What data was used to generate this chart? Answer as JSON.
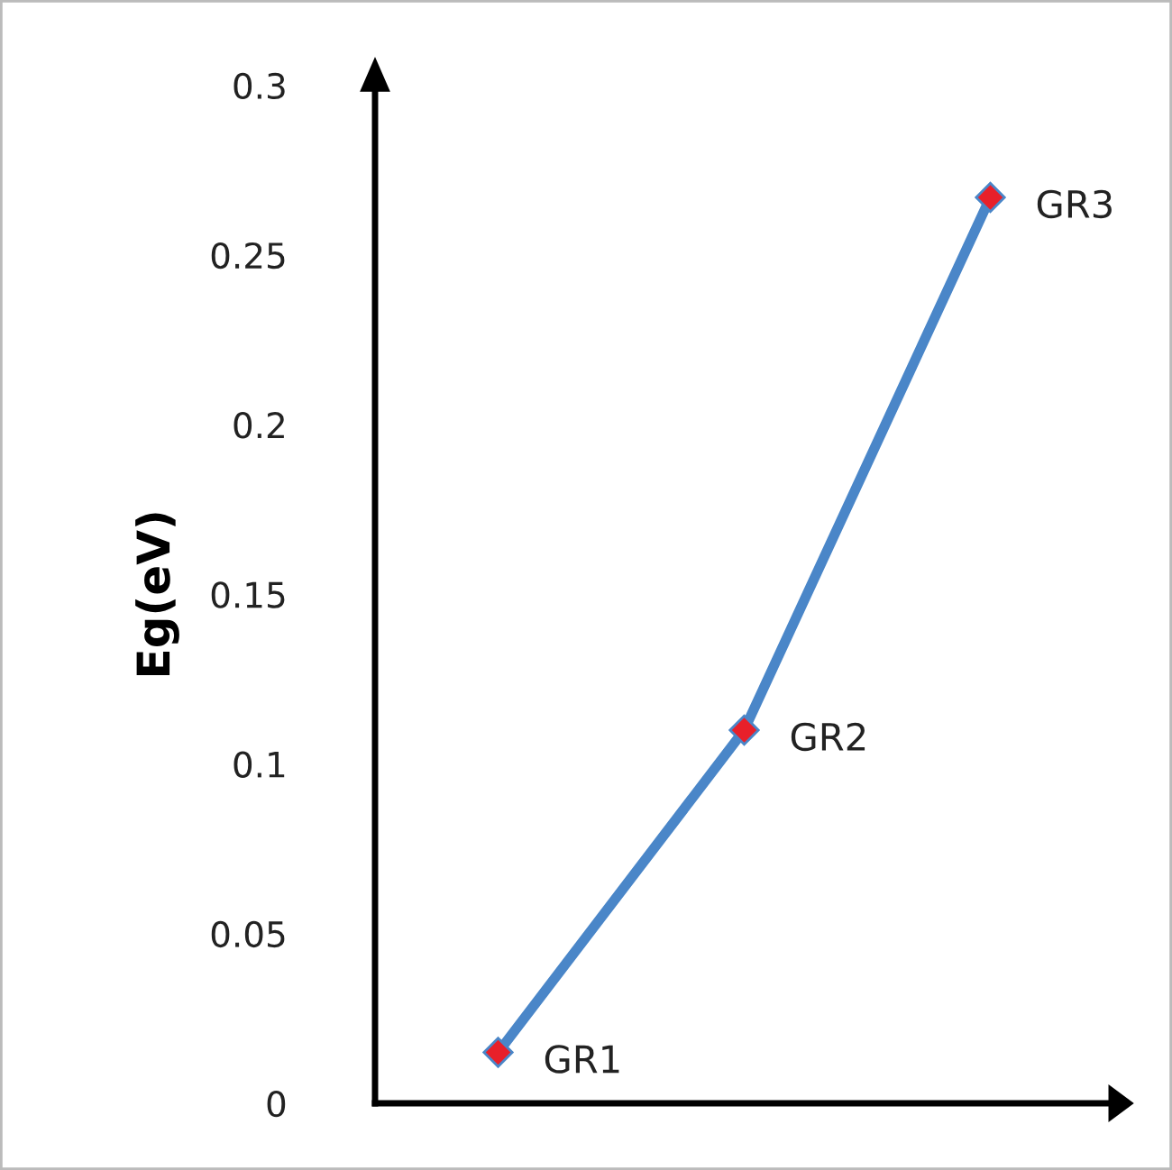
{
  "chart_data": {
    "type": "line",
    "ylabel": "Eg(eV)",
    "categories": [
      null,
      null,
      null
    ],
    "series": [
      {
        "color": "#4a86c8",
        "colors": [
          "#e8202a",
          "#e8202a",
          "#e8202a"
        ],
        "values": [
          0.015,
          0.11,
          0.267
        ],
        "value_labels": [
          "GR1",
          "GR2",
          "GR3"
        ]
      }
    ],
    "ylim": [
      0,
      0.3
    ],
    "yticks": [
      0,
      0.05,
      0.1,
      0.15,
      0.2,
      0.25,
      0.3
    ],
    "marker": "diamond",
    "line_style": "solid",
    "grid": false,
    "legend": false
  }
}
